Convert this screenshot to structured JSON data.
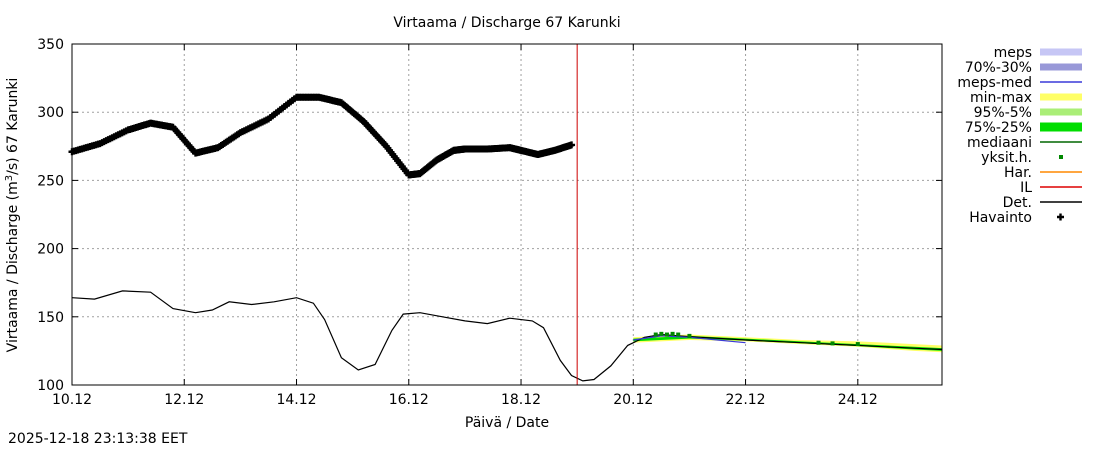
{
  "chart_data": {
    "type": "line",
    "title": "Virtaama / Discharge  67 Karunki",
    "xlabel": "Päivä / Date",
    "ylabel": "Virtaama / Discharge (m3/s)  67 Karunki",
    "ylabel_parts": {
      "pre": "Virtaama / Discharge (m",
      "sup": "3",
      "post": "/s)  67 Karunki"
    },
    "ylim": [
      100,
      350
    ],
    "xlim": [
      10,
      25.5
    ],
    "yticks": [
      100,
      150,
      200,
      250,
      300,
      350
    ],
    "xticks": [
      {
        "x": 10,
        "label": "10.12"
      },
      {
        "x": 12,
        "label": "12.12"
      },
      {
        "x": 14,
        "label": "14.12"
      },
      {
        "x": 16,
        "label": "16.12"
      },
      {
        "x": 18,
        "label": "18.12"
      },
      {
        "x": 20,
        "label": "20.12"
      },
      {
        "x": 22,
        "label": "22.12"
      },
      {
        "x": 24,
        "label": "24.12"
      }
    ],
    "grid": true,
    "now_marker_x": 19.0,
    "legend_position": "right",
    "legend": [
      {
        "label": "meps",
        "color": "#c6c6f5",
        "style": "band"
      },
      {
        "label": "70%-30%",
        "color": "#9898d8",
        "style": "band"
      },
      {
        "label": "meps-med",
        "color": "#3a3ad8",
        "style": "line"
      },
      {
        "label": "min-max",
        "color": "#ffff66",
        "style": "band"
      },
      {
        "label": "95%-5%",
        "color": "#aaee77",
        "style": "band"
      },
      {
        "label": "75%-25%",
        "color": "#00dd00",
        "style": "band"
      },
      {
        "label": "mediaani",
        "color": "#006600",
        "style": "line"
      },
      {
        "label": "yksit.h.",
        "color": "#008800",
        "style": "dot"
      },
      {
        "label": "Har.",
        "color": "#ff8800",
        "style": "line"
      },
      {
        "label": "IL",
        "color": "#dd0000",
        "style": "line"
      },
      {
        "label": "Det.",
        "color": "#000000",
        "style": "line"
      },
      {
        "label": "Havainto",
        "color": "#000000",
        "style": "plus"
      }
    ],
    "series": [
      {
        "name": "Havainto",
        "style": "plus",
        "x": [
          10.0,
          10.5,
          11.0,
          11.4,
          11.8,
          12.2,
          12.6,
          13.0,
          13.5,
          14.0,
          14.4,
          14.8,
          15.2,
          15.6,
          16.0,
          16.2,
          16.5,
          16.8,
          17.0,
          17.4,
          17.8,
          18.0,
          18.3,
          18.6,
          18.9
        ],
        "y": [
          271,
          277,
          287,
          292,
          289,
          270,
          274,
          285,
          295,
          311,
          311,
          307,
          293,
          275,
          254,
          255,
          265,
          272,
          273,
          273,
          274,
          272,
          269,
          272,
          276
        ]
      },
      {
        "name": "Det.",
        "style": "line",
        "x": [
          10.0,
          10.4,
          10.9,
          11.4,
          11.8,
          12.2,
          12.5,
          12.8,
          13.2,
          13.6,
          14.0,
          14.3,
          14.5,
          14.8,
          15.1,
          15.4,
          15.7,
          15.9,
          16.2,
          16.6,
          17.0,
          17.4,
          17.8,
          18.2,
          18.4,
          18.7,
          18.9,
          19.1,
          19.3,
          19.6,
          19.9,
          20.2,
          20.5,
          20.8,
          21.2,
          21.6,
          22.0,
          22.5,
          23.0,
          23.5,
          24.0,
          24.5,
          25.0,
          25.5
        ],
        "y": [
          164,
          163,
          169,
          168,
          156,
          153,
          155,
          161,
          159,
          161,
          164,
          160,
          148,
          120,
          111,
          115,
          140,
          152,
          153,
          150,
          147,
          145,
          149,
          147,
          142,
          118,
          107,
          103,
          104,
          114,
          129,
          135,
          137,
          136,
          135,
          134,
          133,
          132,
          131,
          130,
          129,
          128,
          127,
          126
        ]
      },
      {
        "name": "meps-med",
        "style": "line",
        "x": [
          20.0,
          20.5,
          21.0,
          21.5,
          22.0
        ],
        "y": [
          133,
          136,
          135,
          133,
          131
        ]
      },
      {
        "name": "yksit.h.",
        "style": "dot",
        "x": [
          20.4,
          20.5,
          20.6,
          20.7,
          20.8,
          21.0,
          23.3,
          23.55,
          24.0
        ],
        "y": [
          137,
          137.5,
          137,
          137.5,
          137,
          136,
          131,
          130.5,
          130
        ]
      }
    ],
    "bands": [
      {
        "name": "min-max",
        "x": [
          20.0,
          21.0,
          22.0,
          23.0,
          24.0,
          25.0,
          25.5
        ],
        "lower": [
          131,
          133,
          132,
          130,
          128,
          125,
          124
        ],
        "upper": [
          135,
          137,
          135,
          133,
          132,
          130,
          129
        ]
      },
      {
        "name": "75%-25%",
        "x": [
          20.0,
          21.0,
          22.0,
          23.0,
          24.0,
          25.0,
          25.5
        ],
        "lower": [
          132,
          134,
          132.5,
          130.5,
          128.5,
          126,
          125
        ],
        "upper": [
          134,
          136,
          134,
          132,
          130,
          128,
          127
        ]
      }
    ]
  },
  "timestamp": "2025-12-18 23:13:38 EET"
}
